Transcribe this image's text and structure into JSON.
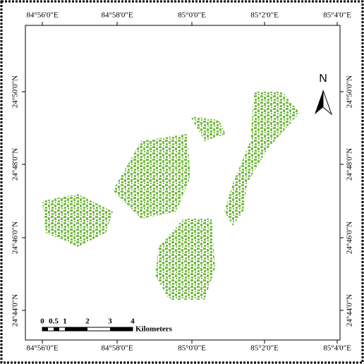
{
  "x_labels_top": [
    "84°56'0\"E",
    "84°58'0\"E",
    "85°0'0\"E",
    "85°2'0\"E",
    "85°4'0\"E"
  ],
  "x_labels_bottom": [
    "84°56'0\"E",
    "84°58'0\"E",
    "85°0'0\"E",
    "85°2'0\"E",
    "85°4'0\"E"
  ],
  "y_labels_left": [
    "24°50'0\"N",
    "24°48'0\"N",
    "24°46'0\"N",
    "24°44'0\"N"
  ],
  "y_labels_right": [
    "24°50'0\"N",
    "24°48'0\"N",
    "24°46'0\"N",
    "24°44'0\"N"
  ],
  "north": "N",
  "scale": {
    "labels": [
      "0",
      "0.5",
      "1",
      "2",
      "3",
      "4"
    ],
    "unit": "Kilometers"
  }
}
